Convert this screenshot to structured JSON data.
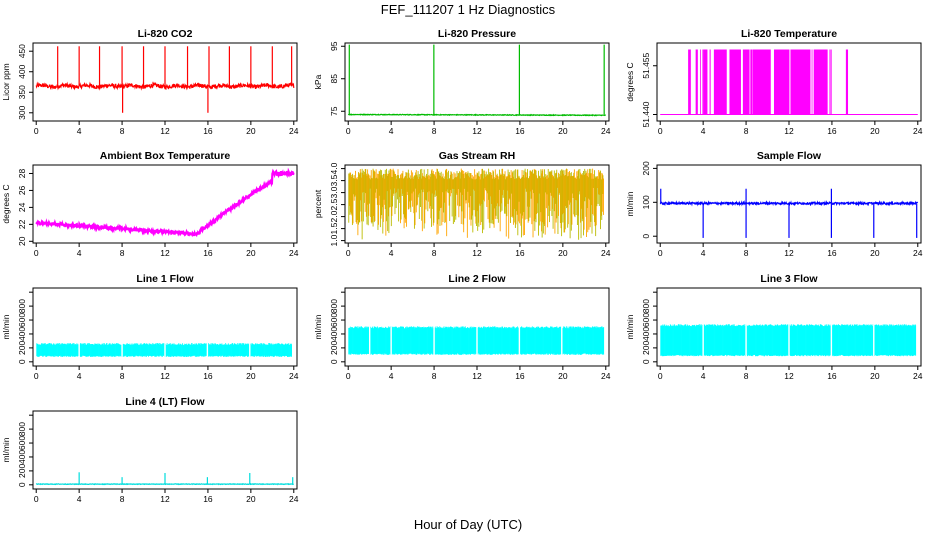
{
  "page": {
    "title": "FEF_111207  1 Hz Diagnostics",
    "xlabel": "Hour of Day (UTC)"
  },
  "chart_data": [
    {
      "type": "line",
      "title": "Li-820 CO2",
      "ylabel": "Licor ppm",
      "ylim": [
        280,
        470
      ],
      "yticks": [
        300,
        350,
        400,
        450
      ],
      "xlim": [
        -0.3,
        24.3
      ],
      "xticks": [
        0,
        4,
        8,
        12,
        16,
        20,
        24
      ],
      "color": "#ff0000",
      "style": "co2",
      "baseline": 365,
      "noise": 5,
      "spike_hours": [
        2.0,
        4.0,
        5.9,
        8.0,
        10.0,
        12.0,
        14.1,
        16.1,
        18.0,
        20.0,
        22.0,
        23.8
      ],
      "spike_top": 462,
      "dip_hours": [
        8.05,
        16.0
      ],
      "dip_bottom": 300,
      "series": [
        {
          "values": []
        }
      ]
    },
    {
      "type": "line",
      "title": "Li-820 Pressure",
      "ylabel": "kPa",
      "ylim": [
        72,
        96
      ],
      "yticks": [
        75,
        85,
        95
      ],
      "xlim": [
        -0.3,
        24.3
      ],
      "xticks": [
        0,
        4,
        8,
        12,
        16,
        20,
        24
      ],
      "color": "#00bb00",
      "style": "pressure",
      "baseline": 74,
      "spike_hours": [
        0.1,
        7.98,
        15.95,
        23.85
      ],
      "spike_top": 95.5,
      "series": [
        {
          "values": []
        }
      ]
    },
    {
      "type": "line",
      "title": "Li-820 Temperature",
      "ylabel": "degrees C",
      "ylim": [
        51.438,
        51.462
      ],
      "yticks": [
        51.44,
        51.455
      ],
      "yticks_all": [
        51.44,
        51.455
      ],
      "yticklabels": [
        "51.440",
        "51.455"
      ],
      "xlim": [
        -0.3,
        24.3
      ],
      "xticks": [
        0,
        4,
        8,
        12,
        16,
        20,
        24
      ],
      "color": "#ff00ff",
      "style": "licortemp",
      "levels": [
        51.44,
        51.46
      ],
      "series": [
        {
          "values": []
        }
      ]
    },
    {
      "type": "line",
      "title": "Ambient Box Temperature",
      "ylabel": "degrees C",
      "ylim": [
        19.8,
        29
      ],
      "yticks": [
        20,
        22,
        24,
        26,
        28
      ],
      "xlim": [
        -0.3,
        24.3
      ],
      "xticks": [
        0,
        4,
        8,
        12,
        16,
        20,
        24
      ],
      "color": "#ff00ff",
      "style": "ambient",
      "series": [
        {
          "values": []
        }
      ]
    },
    {
      "type": "line",
      "title": "Gas Stream RH",
      "ylabel": "percent",
      "ylim": [
        0.9,
        4.15
      ],
      "yticks": [
        1.0,
        1.5,
        2.0,
        2.5,
        3.0,
        3.5,
        4.0
      ],
      "yticklabels": [
        "1.0",
        "1.5",
        "2.0",
        "2.5",
        "3.0",
        "3.5",
        "4.0"
      ],
      "xlim": [
        -0.3,
        24.3
      ],
      "xticks": [
        0,
        4,
        8,
        12,
        16,
        20,
        24
      ],
      "color": "#ffa500",
      "color2": "#bbbb00",
      "style": "rh",
      "series": [
        {
          "values": []
        }
      ]
    },
    {
      "type": "line",
      "title": "Sample Flow",
      "ylabel": "ml/min",
      "ylim": [
        -20,
        210
      ],
      "yticks": [
        0,
        100,
        200
      ],
      "xlim": [
        -0.3,
        24.3
      ],
      "xticks": [
        0,
        4,
        8,
        12,
        16,
        20,
        24
      ],
      "color": "#0000ff",
      "style": "sample",
      "baseline": 97,
      "down_hours": [
        4.0,
        8.0,
        12.0,
        15.95,
        19.9,
        23.9
      ],
      "up_hours": [
        0.05,
        8.0,
        15.95
      ],
      "series": [
        {
          "values": []
        }
      ]
    },
    {
      "type": "line",
      "title": "Line 1 Flow",
      "ylabel": "ml/min",
      "ylim": [
        -60,
        1060
      ],
      "yticks": [
        0,
        200,
        400,
        600,
        800,
        1000
      ],
      "yticklabels": [
        "0",
        "200",
        "400",
        "600",
        "800",
        ""
      ],
      "xlim": [
        -0.3,
        24.3
      ],
      "xticks": [
        0,
        4,
        8,
        12,
        16,
        20,
        24
      ],
      "color": "#00ffff",
      "style": "band",
      "band_low": 70,
      "band_high": 270,
      "gap_hours": [
        4.0,
        8.0,
        12.0,
        15.95,
        19.9,
        23.9
      ],
      "series": [
        {
          "values": []
        }
      ]
    },
    {
      "type": "line",
      "title": "Line 2 Flow",
      "ylabel": "ml/min",
      "ylim": [
        -60,
        1060
      ],
      "yticks": [
        0,
        200,
        400,
        600,
        800,
        1000
      ],
      "yticklabels": [
        "0",
        "200",
        "400",
        "600",
        "800",
        ""
      ],
      "xlim": [
        -0.3,
        24.3
      ],
      "xticks": [
        0,
        4,
        8,
        12,
        16,
        20,
        24
      ],
      "color": "#00ffff",
      "style": "band",
      "band_low": 100,
      "band_high": 510,
      "gap_hours": [
        2.0,
        4.0,
        8.0,
        12.0,
        15.95,
        19.9
      ],
      "series": [
        {
          "values": []
        }
      ]
    },
    {
      "type": "line",
      "title": "Line 3 Flow",
      "ylabel": "ml/min",
      "ylim": [
        -60,
        1060
      ],
      "yticks": [
        0,
        200,
        400,
        600,
        800,
        1000
      ],
      "yticklabels": [
        "0",
        "200",
        "400",
        "600",
        "800",
        ""
      ],
      "xlim": [
        -0.3,
        24.3
      ],
      "xticks": [
        0,
        4,
        8,
        12,
        16,
        20,
        24
      ],
      "color": "#00ffff",
      "style": "band",
      "band_low": 80,
      "band_high": 540,
      "gap_hours": [
        4.0,
        8.0,
        12.0,
        15.95,
        19.9
      ],
      "series": [
        {
          "values": []
        }
      ]
    },
    {
      "type": "line",
      "title": "Line 4 (LT) Flow",
      "ylabel": "ml/min",
      "ylim": [
        -60,
        1060
      ],
      "yticks": [
        0,
        200,
        400,
        600,
        800,
        1000
      ],
      "yticklabels": [
        "0",
        "200",
        "400",
        "600",
        "800",
        ""
      ],
      "xlim": [
        -0.3,
        24.3
      ],
      "xticks": [
        0,
        4,
        8,
        12,
        16,
        20,
        24
      ],
      "color": "#00dddd",
      "style": "lt",
      "baseline": 10,
      "spike_hours": [
        4.0,
        8.0,
        12.0,
        15.95,
        19.9,
        23.9
      ],
      "spike_values": [
        180,
        110,
        170,
        110,
        170,
        110
      ],
      "series": [
        {
          "values": []
        }
      ]
    }
  ]
}
